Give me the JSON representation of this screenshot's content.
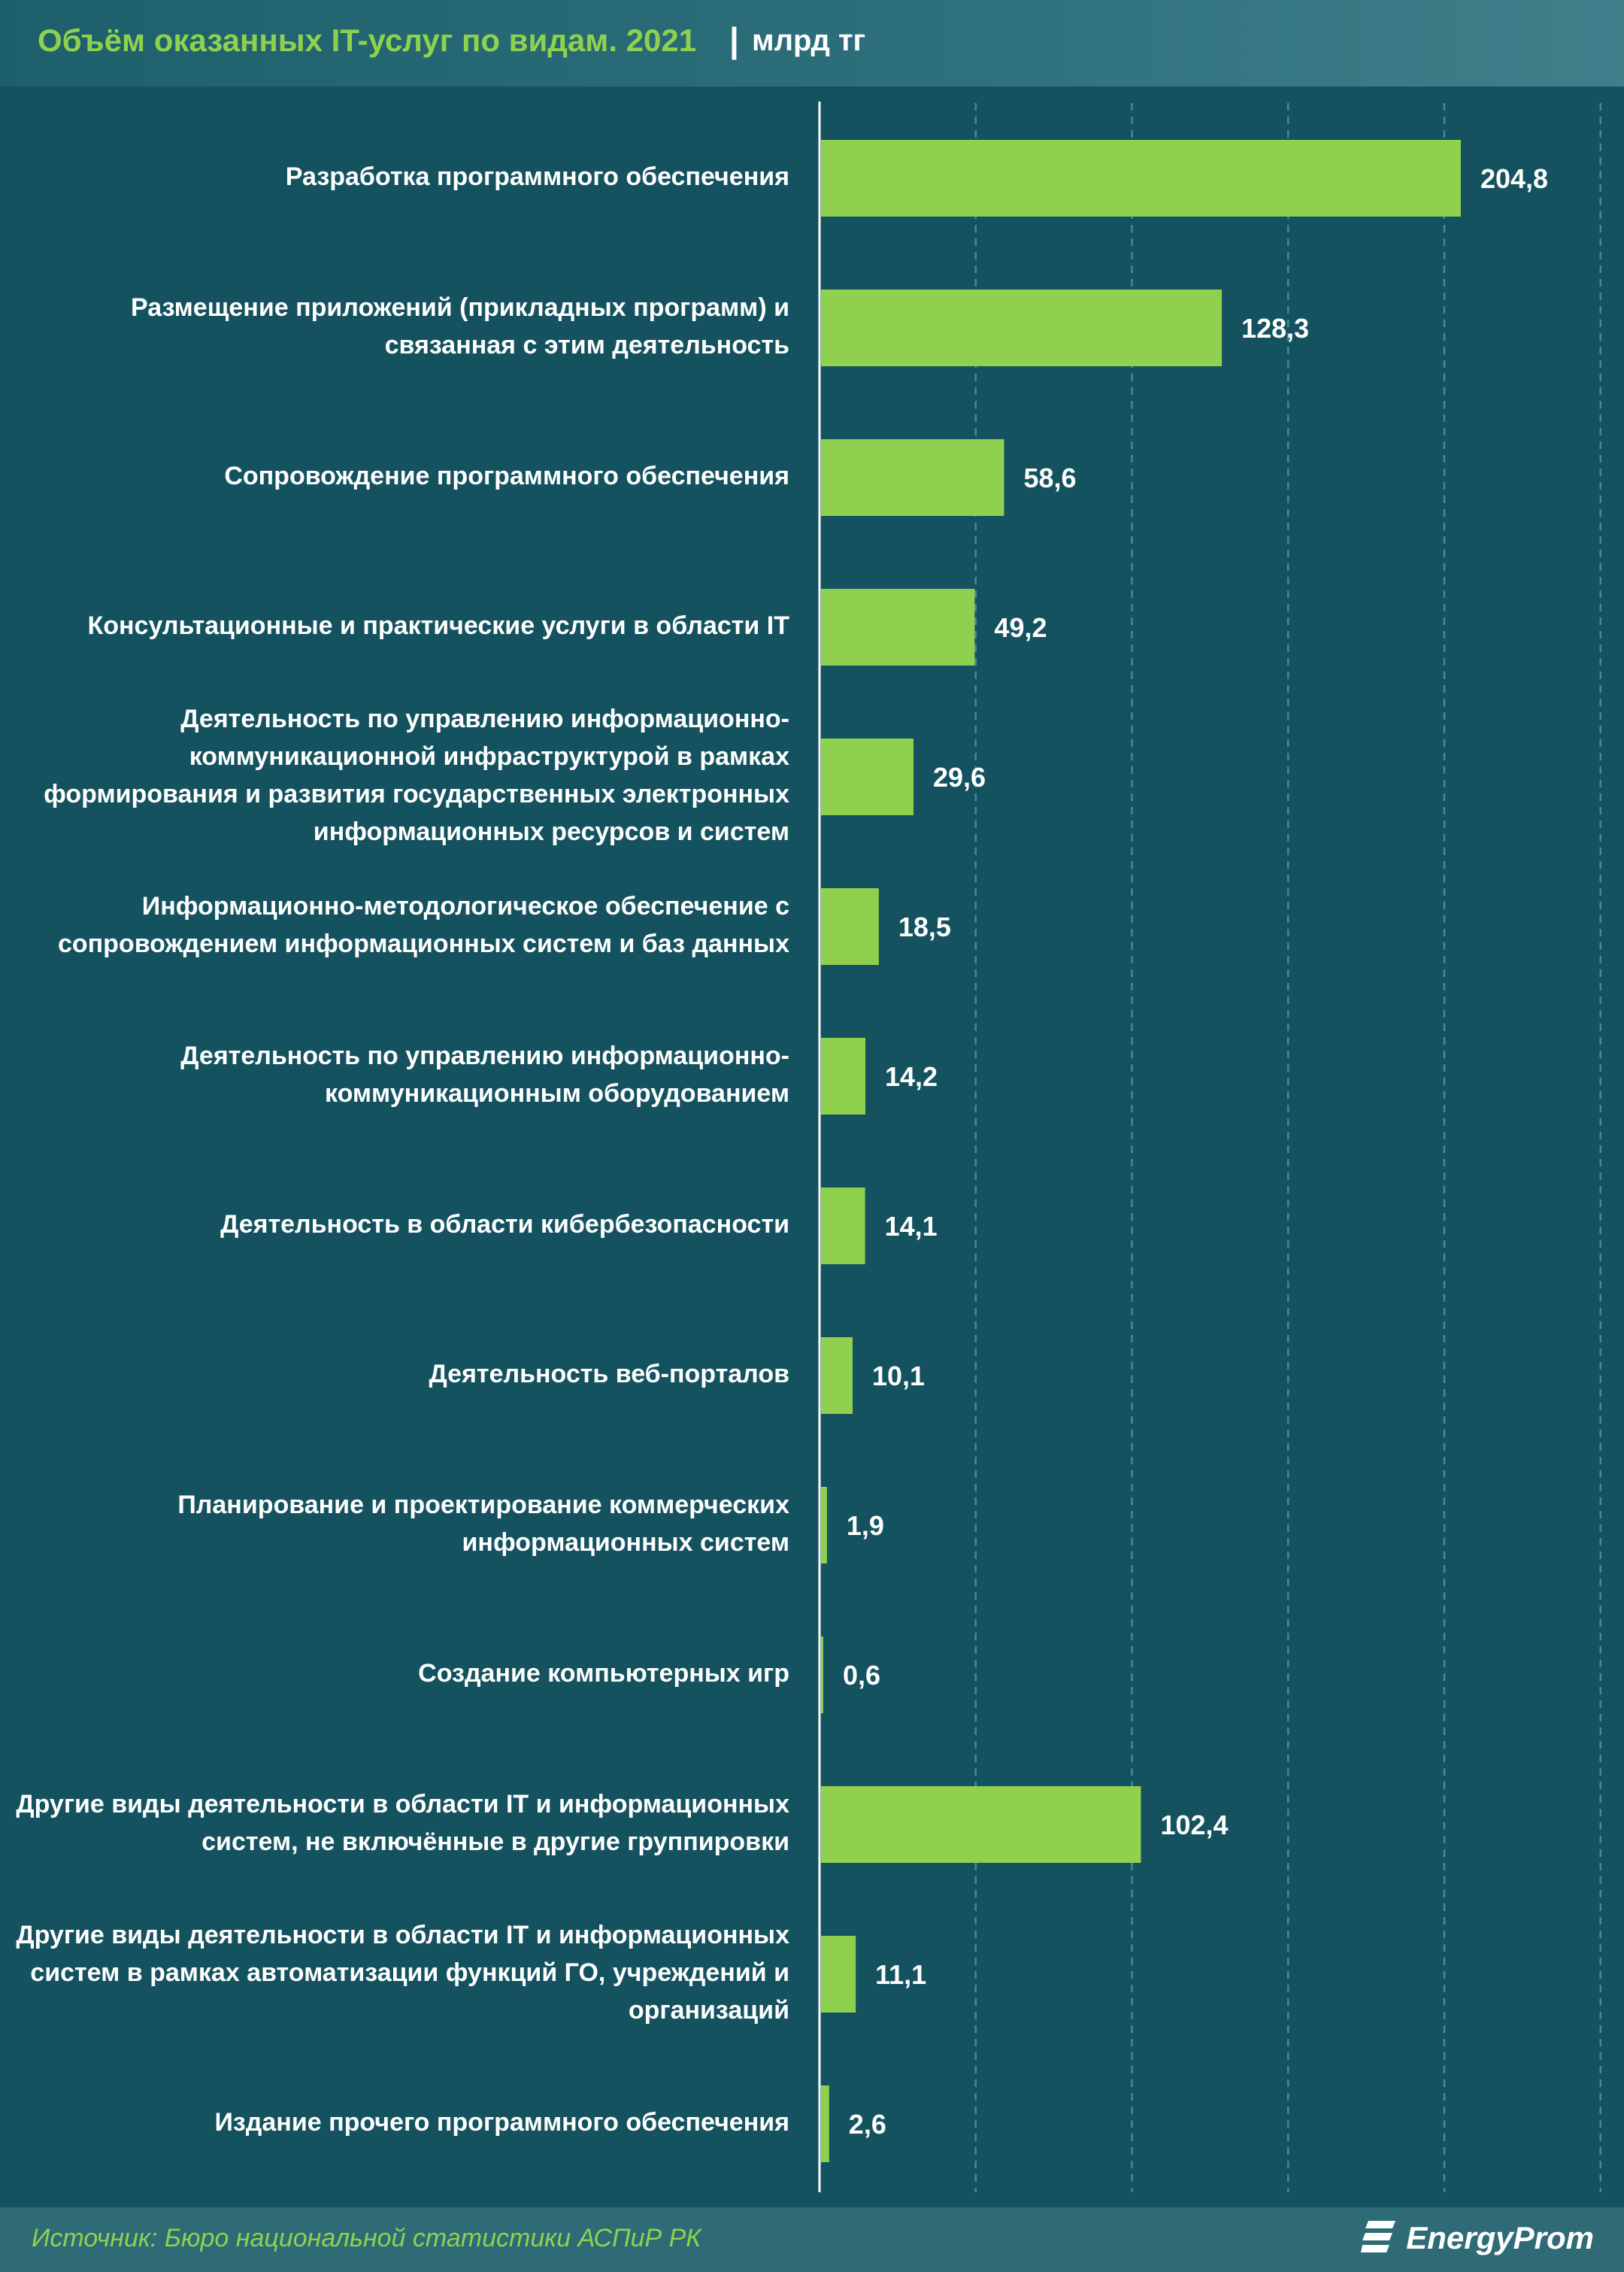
{
  "header": {
    "title": "Объём оказанных IT-услуг по видам. 2021",
    "separator": "|",
    "unit": "млрд тг"
  },
  "footer": {
    "source": "Источник: Бюро национальной статистики АСПиР РК",
    "logo_text": "EnergyProm",
    "logo_icon": "energyprom-logo-icon"
  },
  "colors": {
    "background": "#14525f",
    "bar": "#8fd14f",
    "title": "#8fd14f",
    "grid": "#3b8ea0"
  },
  "chart_data": {
    "type": "bar",
    "orientation": "horizontal",
    "grid": true,
    "categories": [
      "Разработка программного обеспечения",
      "Размещение приложений (прикладных программ) и связанная с этим деятельность",
      "Сопровождение программного обеспечения",
      "Консультационные и практические услуги в области IT",
      "Деятельность по управлению информационно-коммуникационной инфраструктурой  в рамках формирования и развития государственных электронных информационных ресурсов и систем",
      "Информационно-методологическое обеспечение с сопровождением информационных систем и баз данных",
      "Деятельность по управлению информационно-коммуникационным оборудованием",
      "Деятельность в области кибербезопасности",
      "Деятельность веб-порталов",
      "Планирование и проектирование коммерческих информационных систем",
      "Создание компьютерных игр",
      "Другие виды деятельности в области IT и информационных систем, не включённые в другие группировки",
      "Другие виды деятельности в области IT и информационных систем в рамках автоматизации функций ГО, учреждений и организаций",
      "Издание прочего программного обеспечения"
    ],
    "category_lines": [
      [
        "Разработка программного обеспечения"
      ],
      [
        "Размещение приложений (прикладных программ) и",
        "связанная с этим деятельность"
      ],
      [
        "Сопровождение программного обеспечения"
      ],
      [
        "Консультационные и практические услуги в области IT"
      ],
      [
        "Деятельность по управлению информационно-",
        "коммуникационной инфраструктурой  в рамках",
        "формирования и развития государственных электронных",
        "информационных ресурсов и систем"
      ],
      [
        "Информационно-методологическое обеспечение с",
        "сопровождением информационных систем и баз данных"
      ],
      [
        "Деятельность по управлению информационно-",
        "коммуникационным оборудованием"
      ],
      [
        "Деятельность в области кибербезопасности"
      ],
      [
        "Деятельность веб-порталов"
      ],
      [
        "Планирование и проектирование коммерческих",
        "информационных систем"
      ],
      [
        "Создание компьютерных игр"
      ],
      [
        "Другие виды деятельности в области IT и информационных",
        "систем, не включённые в другие группировки"
      ],
      [
        "Другие виды деятельности в области IT и информационных",
        "систем в рамках автоматизации функций ГО, учреждений и",
        "организаций"
      ],
      [
        "Издание прочего программного обеспечения"
      ]
    ],
    "values": [
      204.8,
      128.3,
      58.6,
      49.2,
      29.6,
      18.5,
      14.2,
      14.1,
      10.1,
      1.9,
      0.6,
      102.4,
      11.1,
      2.6
    ],
    "value_labels": [
      "204,8",
      "128,3",
      "58,6",
      "49,2",
      "29,6",
      "18,5",
      "14,2",
      "14,1",
      "10,1",
      "1,9",
      "0,6",
      "102,4",
      "11,1",
      "2,6"
    ],
    "xlim": [
      0,
      250
    ]
  }
}
